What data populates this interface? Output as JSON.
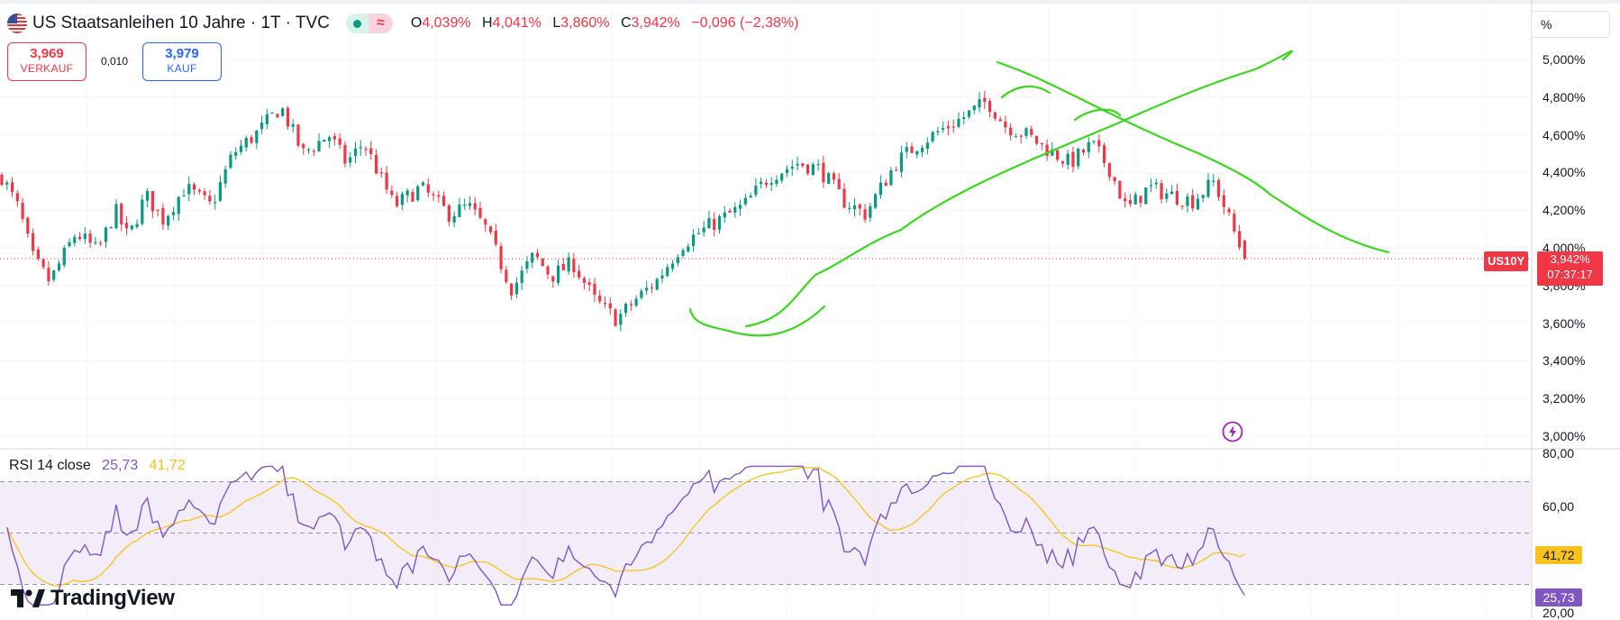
{
  "header": {
    "title": "US Staatsanleihen 10 Jahre · 1T · TVC",
    "ohlc": [
      {
        "key": "O",
        "value": "4,039%"
      },
      {
        "key": "H",
        "value": "4,041%"
      },
      {
        "key": "L",
        "value": "3,860%"
      },
      {
        "key": "C",
        "value": "3,942%"
      }
    ],
    "change": "−0,096 (−2,38%)",
    "status_symbol": "≈"
  },
  "trade": {
    "sell_price": "3,969",
    "sell_label": "VERKAUF",
    "spread": "0,010",
    "buy_price": "3,979",
    "buy_label": "KAUF"
  },
  "scale_button": "%",
  "price_axis": {
    "ticks": [
      "5,000%",
      "4,800%",
      "4,600%",
      "4,400%",
      "4,200%",
      "4,000%",
      "3,800%",
      "3,600%",
      "3,400%",
      "3,200%",
      "3,000%"
    ],
    "ticks_values": [
      5.0,
      4.8,
      4.6,
      4.4,
      4.2,
      4.0,
      3.8,
      3.6,
      3.4,
      3.2,
      3.0
    ],
    "symbol": "US10Y",
    "last_price": "3,942%",
    "countdown": "07:37:17"
  },
  "rsi": {
    "title": "RSI 14 close",
    "value": "25,73",
    "ma_value": "41,72",
    "axis_ticks": [
      "80,00",
      "60,00",
      "20,00"
    ],
    "rsi_color": "#7e57c2",
    "ma_color": "#f7c31a"
  },
  "brand": {
    "name": "TradingView"
  },
  "icons": {
    "flag": "us-flag-icon",
    "alert": "lightning-icon",
    "logo": "tradingview-logo-icon"
  },
  "colors": {
    "up": "#089981",
    "down": "#f23645",
    "drawing": "#3bd61e"
  },
  "chart_data": [
    {
      "type": "candlestick",
      "series": [
        {
          "name": "US10Y"
        }
      ],
      "ylim": [
        2.9,
        5.2
      ],
      "y_unit": "%",
      "candle_count": 240,
      "candle_close_trajectory": [
        [
          0,
          4.38
        ],
        [
          8,
          4.2
        ],
        [
          14,
          3.95
        ],
        [
          22,
          3.82
        ],
        [
          34,
          4.08
        ],
        [
          44,
          3.98
        ],
        [
          52,
          4.2
        ],
        [
          58,
          4.05
        ],
        [
          66,
          4.28
        ],
        [
          74,
          4.15
        ],
        [
          84,
          4.32
        ],
        [
          96,
          4.22
        ],
        [
          106,
          4.5
        ],
        [
          118,
          4.62
        ],
        [
          128,
          4.75
        ],
        [
          138,
          4.5
        ],
        [
          150,
          4.6
        ],
        [
          158,
          4.45
        ],
        [
          166,
          4.56
        ],
        [
          180,
          4.22
        ],
        [
          192,
          4.32
        ],
        [
          205,
          4.18
        ],
        [
          214,
          4.22
        ],
        [
          222,
          4.1
        ],
        [
          234,
          3.78
        ],
        [
          244,
          3.96
        ],
        [
          252,
          3.85
        ],
        [
          262,
          3.92
        ],
        [
          272,
          3.72
        ],
        [
          282,
          3.62
        ],
        [
          292,
          3.74
        ],
        [
          300,
          3.82
        ],
        [
          312,
          4.02
        ],
        [
          325,
          4.12
        ],
        [
          340,
          4.22
        ],
        [
          352,
          4.38
        ],
        [
          365,
          4.45
        ],
        [
          375,
          4.42
        ],
        [
          386,
          4.25
        ],
        [
          396,
          4.18
        ],
        [
          410,
          4.45
        ],
        [
          420,
          4.55
        ],
        [
          430,
          4.62
        ],
        [
          442,
          4.7
        ],
        [
          452,
          4.78
        ],
        [
          460,
          4.65
        ],
        [
          470,
          4.6
        ],
        [
          480,
          4.52
        ],
        [
          490,
          4.45
        ],
        [
          500,
          4.55
        ],
        [
          508,
          4.42
        ],
        [
          516,
          4.2
        ],
        [
          526,
          4.32
        ],
        [
          536,
          4.28
        ],
        [
          546,
          4.25
        ],
        [
          556,
          4.35
        ],
        [
          562,
          4.18
        ],
        [
          570,
          3.94
        ]
      ],
      "price_line": 3.942,
      "drawings": "freehand trend lines"
    },
    {
      "type": "line",
      "series": [
        {
          "name": "RSI"
        },
        {
          "name": "MA"
        }
      ],
      "ylim": [
        15,
        80
      ],
      "bands": [
        70,
        50,
        30
      ],
      "last_values": {
        "RSI": 25.73,
        "MA": 41.72
      }
    }
  ]
}
